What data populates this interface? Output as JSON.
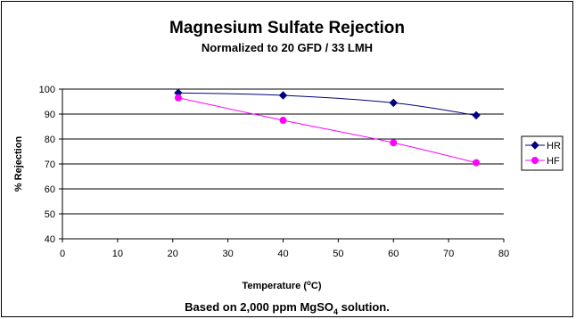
{
  "chart_data": {
    "type": "line",
    "title": "Magnesium Sulfate Rejection",
    "subtitle": "Normalized to 20 GFD / 33 LMH",
    "xlabel": {
      "pre": "Temperature (",
      "sup": "o",
      "post": "C)"
    },
    "ylabel": "% Rejection",
    "xlim": [
      0,
      80
    ],
    "ylim": [
      40,
      100
    ],
    "x_ticks": [
      "0",
      "10",
      "20",
      "30",
      "40",
      "50",
      "60",
      "70",
      "80"
    ],
    "y_ticks": [
      "40",
      "50",
      "60",
      "70",
      "80",
      "90",
      "100"
    ],
    "grid": "horizontal",
    "legend_position": "right",
    "series": [
      {
        "name": "HR",
        "color": "#000080",
        "marker": "diamond",
        "x": [
          21,
          40,
          60,
          75
        ],
        "y": [
          98.5,
          97.5,
          94.5,
          89.5
        ]
      },
      {
        "name": "HF",
        "color": "#FF00FF",
        "marker": "circle",
        "x": [
          21,
          40,
          60,
          75
        ],
        "y": [
          96.5,
          87.5,
          78.5,
          70.5
        ]
      }
    ],
    "footnote": {
      "pre": "Based on 2,000 ppm MgSO",
      "sub": "4",
      "post": " solution."
    }
  }
}
